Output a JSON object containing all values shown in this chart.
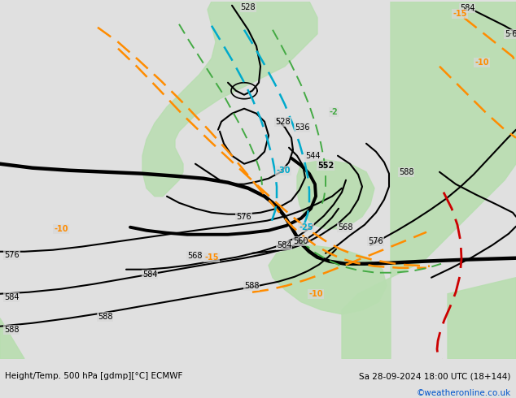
{
  "title_left": "Height/Temp. 500 hPa [gdmp][°C] ECMWF",
  "title_right": "Sa 28-09-2024 18:00 UTC (18+144)",
  "watermark": "©weatheronline.co.uk",
  "fig_width": 6.34,
  "fig_height": 4.9,
  "dpi": 100,
  "bg_grey": "#c8c8c8",
  "bg_green": "#b8ddb0",
  "bottom_bar": "#e0e0e0",
  "map_bg": "#d8d8d8"
}
